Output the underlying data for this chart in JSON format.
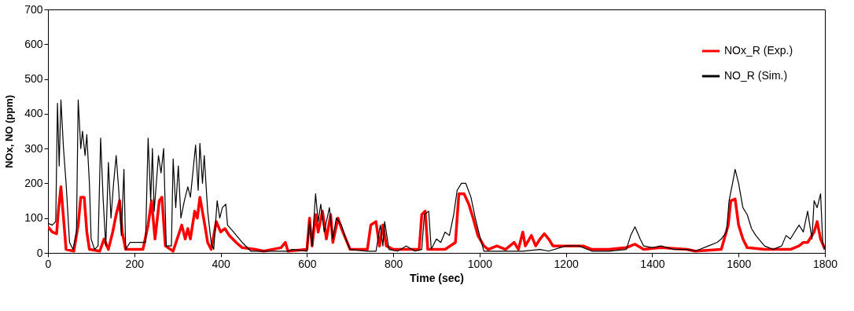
{
  "chart_data": {
    "type": "line",
    "xlabel": "Time (sec)",
    "ylabel": "NOx, NO (ppm)",
    "xlim": [
      0,
      1800
    ],
    "xticks": [
      0,
      200,
      400,
      600,
      800,
      1000,
      1200,
      1400,
      1600,
      1800
    ],
    "ylim": [
      0,
      700
    ],
    "yticks": [
      0,
      100,
      200,
      300,
      400,
      500,
      600,
      700
    ],
    "grid": false,
    "legend": "top right",
    "marker": "none",
    "line_style": "solid",
    "series": [
      {
        "name": "NOx_R (Exp.)",
        "color": "#ff0000",
        "x": [
          0,
          10,
          20,
          24,
          30,
          36,
          42,
          60,
          70,
          76,
          84,
          90,
          96,
          120,
          130,
          140,
          150,
          158,
          166,
          172,
          180,
          220,
          232,
          240,
          248,
          258,
          264,
          272,
          290,
          310,
          318,
          324,
          330,
          340,
          346,
          352,
          362,
          370,
          378,
          390,
          400,
          410,
          420,
          436,
          450,
          480,
          500,
          540,
          550,
          556,
          600,
          606,
          612,
          620,
          626,
          636,
          645,
          655,
          660,
          672,
          680,
          690,
          700,
          740,
          748,
          760,
          768,
          776,
          784,
          800,
          860,
          866,
          874,
          880,
          920,
          944,
          952,
          964,
          975,
          985,
          996,
          1010,
          1020,
          1040,
          1060,
          1080,
          1090,
          1100,
          1106,
          1120,
          1130,
          1140,
          1150,
          1160,
          1170,
          1200,
          1240,
          1260,
          1300,
          1340,
          1360,
          1380,
          1420,
          1480,
          1500,
          1560,
          1576,
          1582,
          1592,
          1600,
          1610,
          1620,
          1660,
          1720,
          1740,
          1750,
          1760,
          1775,
          1782,
          1790,
          1800
        ],
        "values": [
          75,
          60,
          55,
          120,
          190,
          100,
          10,
          5,
          80,
          160,
          160,
          60,
          10,
          5,
          40,
          10,
          60,
          110,
          150,
          60,
          10,
          10,
          80,
          150,
          40,
          150,
          160,
          20,
          5,
          80,
          40,
          70,
          40,
          120,
          100,
          160,
          90,
          30,
          10,
          90,
          60,
          70,
          50,
          30,
          15,
          10,
          5,
          15,
          30,
          5,
          10,
          100,
          20,
          110,
          60,
          120,
          40,
          110,
          30,
          100,
          70,
          40,
          10,
          10,
          80,
          90,
          20,
          80,
          20,
          10,
          10,
          110,
          120,
          10,
          10,
          30,
          170,
          170,
          140,
          100,
          50,
          20,
          10,
          20,
          10,
          30,
          10,
          60,
          20,
          50,
          20,
          40,
          55,
          40,
          20,
          20,
          20,
          10,
          10,
          15,
          25,
          10,
          15,
          10,
          5,
          10,
          80,
          150,
          155,
          80,
          40,
          15,
          10,
          10,
          20,
          30,
          30,
          60,
          90,
          40,
          10
        ]
      },
      {
        "name": "NO_R (Sim.)",
        "color": "#000000",
        "x": [
          0,
          10,
          18,
          22,
          26,
          30,
          36,
          42,
          50,
          58,
          66,
          70,
          76,
          80,
          86,
          90,
          96,
          100,
          108,
          116,
          122,
          128,
          134,
          140,
          146,
          152,
          158,
          164,
          170,
          176,
          180,
          190,
          200,
          214,
          226,
          232,
          238,
          242,
          246,
          256,
          262,
          268,
          274,
          286,
          290,
          296,
          302,
          308,
          316,
          324,
          330,
          342,
          348,
          352,
          358,
          362,
          370,
          378,
          384,
          392,
          398,
          404,
          412,
          416,
          430,
          450,
          470,
          500,
          540,
          556,
          566,
          600,
          606,
          612,
          620,
          626,
          632,
          640,
          652,
          660,
          668,
          680,
          690,
          700,
          740,
          760,
          770,
          776,
          780,
          790,
          810,
          830,
          850,
          866,
          872,
          882,
          888,
          900,
          910,
          920,
          930,
          940,
          948,
          958,
          968,
          980,
          990,
          1000,
          1010,
          1040,
          1100,
          1140,
          1160,
          1200,
          1230,
          1260,
          1300,
          1340,
          1350,
          1360,
          1372,
          1380,
          1400,
          1420,
          1450,
          1480,
          1500,
          1530,
          1550,
          1560,
          1572,
          1578,
          1586,
          1592,
          1600,
          1610,
          1620,
          1630,
          1640,
          1660,
          1680,
          1700,
          1710,
          1720,
          1740,
          1750,
          1760,
          1770,
          1775,
          1782,
          1790,
          1795,
          1800
        ],
        "values": [
          85,
          80,
          90,
          430,
          250,
          440,
          300,
          200,
          30,
          10,
          60,
          440,
          300,
          350,
          280,
          340,
          200,
          40,
          10,
          20,
          330,
          150,
          20,
          260,
          100,
          200,
          280,
          180,
          50,
          240,
          10,
          30,
          30,
          30,
          30,
          330,
          150,
          300,
          120,
          280,
          230,
          300,
          20,
          20,
          270,
          130,
          250,
          100,
          150,
          190,
          160,
          310,
          180,
          315,
          200,
          280,
          120,
          30,
          10,
          150,
          100,
          130,
          140,
          80,
          60,
          30,
          5,
          5,
          5,
          5,
          10,
          5,
          90,
          20,
          170,
          90,
          140,
          60,
          130,
          40,
          100,
          80,
          40,
          10,
          5,
          5,
          80,
          20,
          90,
          10,
          5,
          20,
          5,
          10,
          110,
          120,
          10,
          40,
          30,
          60,
          50,
          110,
          180,
          200,
          200,
          160,
          100,
          50,
          5,
          5,
          5,
          10,
          5,
          20,
          20,
          5,
          5,
          10,
          50,
          75,
          40,
          20,
          15,
          20,
          10,
          10,
          5,
          20,
          30,
          40,
          60,
          150,
          200,
          240,
          200,
          130,
          110,
          70,
          50,
          20,
          10,
          20,
          50,
          40,
          80,
          60,
          120,
          40,
          150,
          130,
          170,
          30,
          10
        ]
      }
    ]
  }
}
